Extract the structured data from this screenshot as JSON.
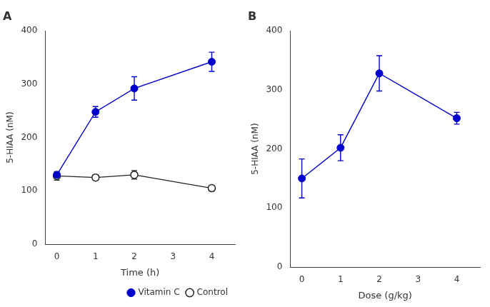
{
  "chart_data": [
    {
      "type": "line",
      "title": "A",
      "xlabel": "Time (h)",
      "ylabel": "5-HIAA (nM)",
      "x": [
        0,
        1,
        2,
        4
      ],
      "series": [
        {
          "name": "Vitamin C",
          "color": "#0000cc",
          "marker": "filled_circle",
          "values": [
            130,
            248,
            292,
            342
          ],
          "yerr": [
            0,
            10,
            22,
            18
          ]
        },
        {
          "name": "Control",
          "color": "#222222",
          "marker": "open_circle",
          "values": [
            128,
            125,
            130,
            105
          ],
          "yerr": [
            8,
            5,
            8,
            5
          ]
        }
      ],
      "xlim": [
        -0.3,
        4.6
      ],
      "xticks": [
        0,
        1,
        2,
        3,
        4
      ],
      "ylim": [
        0,
        400
      ],
      "yticks": [
        0,
        100,
        200,
        300,
        400
      ],
      "legend": "lower right",
      "grid": false
    },
    {
      "type": "line",
      "title": "B",
      "xlabel": "Dose (g/kg)",
      "ylabel": "5-HIAA (nM)",
      "x": [
        0,
        1,
        2,
        4
      ],
      "values": [
        150,
        202,
        328,
        252
      ],
      "yerr": [
        33,
        22,
        30,
        10
      ],
      "color": "#0000cc",
      "marker": "filled_circle",
      "xlim": [
        -0.3,
        4.6
      ],
      "xticks": [
        0,
        1,
        2,
        3,
        4
      ],
      "ylim": [
        0,
        400
      ],
      "yticks": [
        0,
        100,
        200,
        300,
        400
      ],
      "grid": false
    }
  ]
}
